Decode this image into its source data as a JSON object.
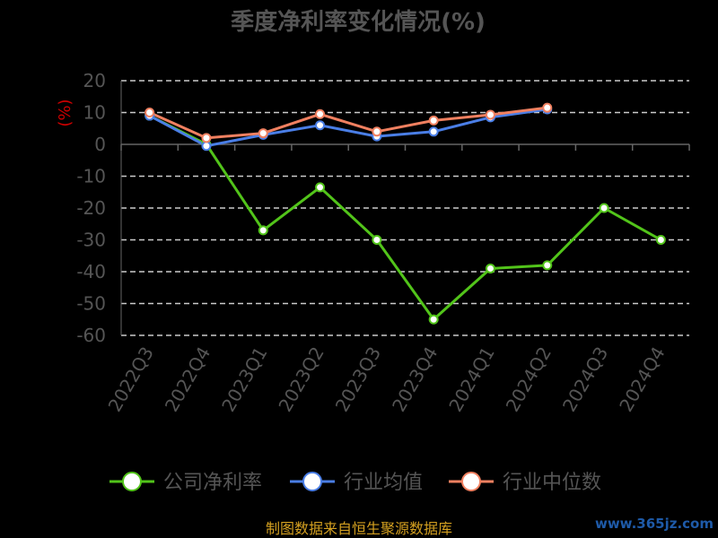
{
  "chart_data": {
    "type": "line",
    "title": "季度净利率变化情况(%)",
    "ylabel": "(%)",
    "ylim": [
      -60,
      20
    ],
    "yticks": [
      20,
      10,
      0,
      -10,
      -20,
      -30,
      -40,
      -50,
      -60
    ],
    "grid": true,
    "legend_position": "bottom",
    "categories": [
      "2022Q3",
      "2022Q4",
      "2023Q1",
      "2023Q2",
      "2023Q3",
      "2023Q4",
      "2024Q1",
      "2024Q2",
      "2024Q3",
      "2024Q4"
    ],
    "series": [
      {
        "name": "公司净利率",
        "color": "#52c41a",
        "values": [
          9,
          0,
          -27,
          -13.5,
          -30,
          -55,
          -39,
          -38,
          -20,
          -30
        ]
      },
      {
        "name": "行业均值",
        "color": "#4a7ee6",
        "values": [
          9,
          -0.5,
          3,
          6,
          2.5,
          4,
          8.5,
          11,
          null,
          null
        ]
      },
      {
        "name": "行业中位数",
        "color": "#f08060",
        "values": [
          10,
          2,
          3.5,
          9.5,
          4,
          7.5,
          9.3,
          11.5,
          null,
          null
        ]
      }
    ]
  },
  "footer": {
    "source": "制图数据来自恒生聚源数据库",
    "watermark": "www.365jz.com"
  }
}
